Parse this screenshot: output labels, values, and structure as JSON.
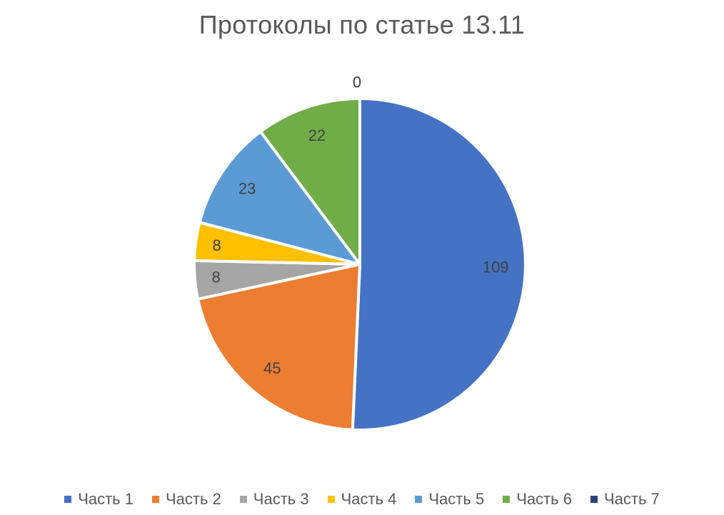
{
  "chart_data": {
    "type": "pie",
    "title": "Протоколы по статье 13.11",
    "categories": [
      "Часть 1",
      "Часть 2",
      "Часть 3",
      "Часть 4",
      "Часть 5",
      "Часть 6",
      "Часть 7"
    ],
    "values": [
      109,
      45,
      8,
      8,
      23,
      22,
      0
    ],
    "colors": [
      "#4472C4",
      "#ED7D31",
      "#A5A5A5",
      "#FFC000",
      "#5B9BD5",
      "#70AD47",
      "#264478"
    ],
    "legend": "bottom",
    "start_angle": "12 o'clock",
    "direction": "clockwise"
  }
}
